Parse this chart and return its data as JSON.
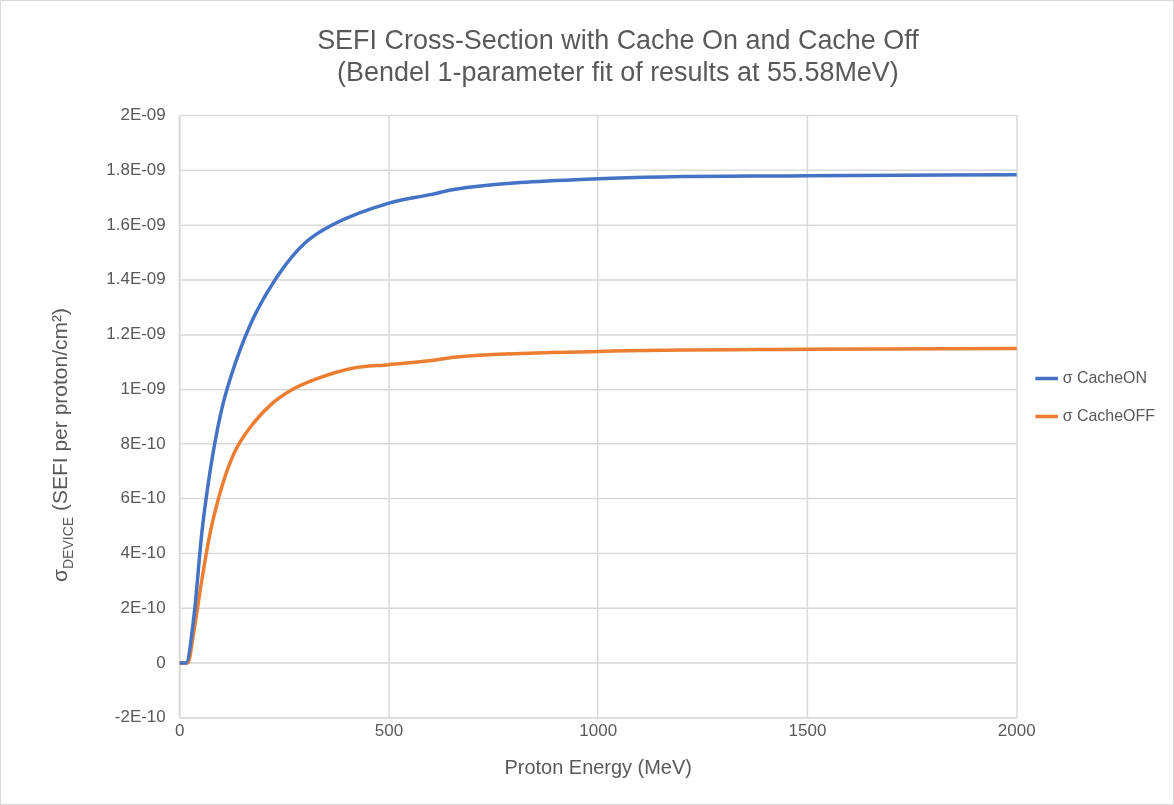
{
  "chart_data": {
    "type": "line",
    "title": "SEFI Cross-Section with Cache On and Cache Off\n(Bendel 1-parameter fit of results at 55.58MeV)",
    "xlabel": "Proton Energy (MeV)",
    "ylabel": "σ$_{DEVICE}$ (SEFI per proton/cm²)",
    "series": [
      {
        "name": "σ CacheON",
        "color": "#4472c4",
        "x": [
          0,
          15,
          34,
          53,
          73,
          97,
          121,
          170,
          228,
          296,
          364,
          500,
          602,
          655,
          1000,
          1500,
          2000
        ],
        "values": [
          0,
          0,
          1.71e-10,
          4.77e-10,
          7.04e-10,
          9.04e-10,
          1.04e-09,
          1.24e-09,
          1.4e-09,
          1.53e-09,
          1.6e-09,
          1.68e-09,
          1.712e-09,
          1.73e-09,
          1.769e-09,
          1.78e-09,
          1.784e-09
        ]
      },
      {
        "name": "σ CacheOFF",
        "color": "#ed7d31",
        "x": [
          0,
          19,
          34,
          53,
          73,
          102,
          131,
          170,
          218,
          267,
          325,
          413,
          500,
          602,
          655,
          1000,
          1500,
          2000
        ],
        "values": [
          0,
          0,
          1.17e-10,
          3.04e-10,
          4.77e-10,
          6.5e-10,
          7.7e-10,
          8.64e-10,
          9.44e-10,
          9.97e-10,
          1.037e-09,
          1.077e-09,
          1.09e-09,
          1.105e-09,
          1.117e-09,
          1.138e-09,
          1.146e-09,
          1.149e-09
        ]
      }
    ],
    "xlim": [
      0,
      2000
    ],
    "xticks": [
      0,
      500,
      1000,
      1500,
      2000
    ],
    "ylim": [
      -2e-10,
      2e-09
    ],
    "yticks": [
      {
        "value": -2e-10,
        "label": "-2E-10"
      },
      {
        "value": 0,
        "label": "0"
      },
      {
        "value": 2e-10,
        "label": "2E-10"
      },
      {
        "value": 4e-10,
        "label": "4E-10"
      },
      {
        "value": 6e-10,
        "label": "6E-10"
      },
      {
        "value": 8e-10,
        "label": "8E-10"
      },
      {
        "value": 1e-09,
        "label": "1E-09"
      },
      {
        "value": 1.2e-09,
        "label": "1.2E-09"
      },
      {
        "value": 1.4e-09,
        "label": "1.4E-09"
      },
      {
        "value": 1.6e-09,
        "label": "1.6E-09"
      },
      {
        "value": 1.8e-09,
        "label": "1.8E-09"
      },
      {
        "value": 2e-09,
        "label": "2E-09"
      }
    ],
    "grid": true,
    "legend": "right",
    "marker": "none",
    "line_style": "solid"
  }
}
